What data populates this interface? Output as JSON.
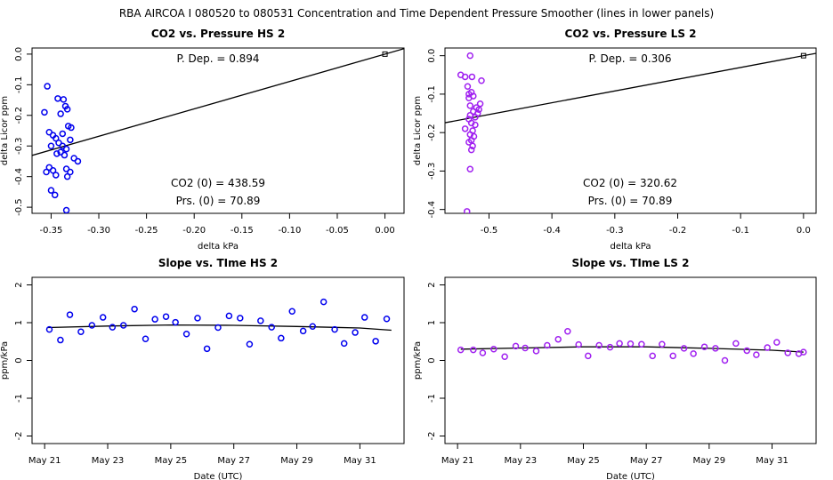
{
  "figure": {
    "title": "RBA   AIRCOA I   080520 to 080531   Concentration and Time Dependent Pressure Smoother (lines in lower panels)"
  },
  "colors": {
    "hs": "#0000ee",
    "ls": "#a020f0",
    "line": "#000000"
  },
  "chart_data": [
    {
      "id": "hs_pressure",
      "type": "scatter",
      "title": "CO2 vs. Pressure HS 2",
      "xlabel": "delta kPa",
      "ylabel": "delta Licor ppm",
      "xlim": [
        -0.37,
        0.02
      ],
      "ylim": [
        -0.52,
        0.02
      ],
      "xticks": [
        -0.35,
        -0.3,
        -0.25,
        -0.2,
        -0.15,
        -0.1,
        -0.05,
        0.0
      ],
      "xtick_labels": [
        "-0.35",
        "-0.30",
        "-0.25",
        "-0.20",
        "-0.15",
        "-0.10",
        "-0.05",
        "0.00"
      ],
      "yticks": [
        0.0,
        -0.1,
        -0.2,
        -0.3,
        -0.4,
        -0.5
      ],
      "ytick_labels": [
        "0.0",
        "-0.1",
        "-0.2",
        "-0.3",
        "-0.4",
        "-0.5"
      ],
      "fit_line": {
        "slope": 0.894,
        "intercept": 0.0
      },
      "origin_point": [
        0.0,
        0.0
      ],
      "annotations": [
        "P. Dep. =  0.894",
        "CO2 (0) =  438.59",
        "Prs. (0) = 70.89"
      ],
      "points": [
        [
          -0.354,
          -0.105
        ],
        [
          -0.357,
          -0.19
        ],
        [
          -0.343,
          -0.145
        ],
        [
          -0.337,
          -0.148
        ],
        [
          -0.335,
          -0.17
        ],
        [
          -0.333,
          -0.18
        ],
        [
          -0.34,
          -0.195
        ],
        [
          -0.352,
          -0.255
        ],
        [
          -0.348,
          -0.265
        ],
        [
          -0.345,
          -0.275
        ],
        [
          -0.338,
          -0.26
        ],
        [
          -0.332,
          -0.235
        ],
        [
          -0.329,
          -0.24
        ],
        [
          -0.33,
          -0.28
        ],
        [
          -0.35,
          -0.3
        ],
        [
          -0.342,
          -0.29
        ],
        [
          -0.338,
          -0.3
        ],
        [
          -0.334,
          -0.31
        ],
        [
          -0.344,
          -0.325
        ],
        [
          -0.34,
          -0.32
        ],
        [
          -0.336,
          -0.33
        ],
        [
          -0.326,
          -0.34
        ],
        [
          -0.322,
          -0.35
        ],
        [
          -0.352,
          -0.37
        ],
        [
          -0.355,
          -0.385
        ],
        [
          -0.348,
          -0.38
        ],
        [
          -0.345,
          -0.395
        ],
        [
          -0.334,
          -0.375
        ],
        [
          -0.33,
          -0.385
        ],
        [
          -0.333,
          -0.4
        ],
        [
          -0.35,
          -0.445
        ],
        [
          -0.346,
          -0.46
        ],
        [
          -0.334,
          -0.51
        ]
      ]
    },
    {
      "id": "ls_pressure",
      "type": "scatter",
      "title": "CO2 vs. Pressure LS 2",
      "xlabel": "delta kPa",
      "ylabel": "delta Licor ppm",
      "xlim": [
        -0.57,
        0.02
      ],
      "ylim": [
        -0.41,
        0.02
      ],
      "xticks": [
        -0.5,
        -0.4,
        -0.3,
        -0.2,
        -0.1,
        0.0
      ],
      "xtick_labels": [
        "-0.5",
        "-0.4",
        "-0.3",
        "-0.2",
        "-0.1",
        "0.0"
      ],
      "yticks": [
        0.0,
        -0.1,
        -0.2,
        -0.3,
        -0.4
      ],
      "ytick_labels": [
        "0.0",
        "-0.1",
        "-0.2",
        "-0.3",
        "-0.4"
      ],
      "fit_line": {
        "slope": 0.306,
        "intercept": 0.0
      },
      "origin_point": [
        0.0,
        0.0
      ],
      "annotations": [
        "P. Dep. =  0.306",
        "CO2 (0) =  320.62",
        "Prs. (0) = 70.89"
      ],
      "points": [
        [
          -0.53,
          0.0
        ],
        [
          -0.545,
          -0.05
        ],
        [
          -0.538,
          -0.055
        ],
        [
          -0.527,
          -0.055
        ],
        [
          -0.512,
          -0.065
        ],
        [
          -0.534,
          -0.08
        ],
        [
          -0.532,
          -0.1
        ],
        [
          -0.528,
          -0.095
        ],
        [
          -0.525,
          -0.105
        ],
        [
          -0.532,
          -0.11
        ],
        [
          -0.514,
          -0.125
        ],
        [
          -0.52,
          -0.135
        ],
        [
          -0.525,
          -0.145
        ],
        [
          -0.53,
          -0.155
        ],
        [
          -0.518,
          -0.15
        ],
        [
          -0.532,
          -0.165
        ],
        [
          -0.528,
          -0.175
        ],
        [
          -0.522,
          -0.18
        ],
        [
          -0.526,
          -0.195
        ],
        [
          -0.53,
          -0.205
        ],
        [
          -0.524,
          -0.21
        ],
        [
          -0.528,
          -0.22
        ],
        [
          -0.532,
          -0.225
        ],
        [
          -0.526,
          -0.235
        ],
        [
          -0.528,
          -0.245
        ],
        [
          -0.53,
          -0.295
        ],
        [
          -0.535,
          -0.405
        ],
        [
          -0.538,
          -0.19
        ],
        [
          -0.522,
          -0.16
        ],
        [
          -0.516,
          -0.14
        ],
        [
          -0.53,
          -0.13
        ]
      ]
    },
    {
      "id": "hs_time",
      "type": "scatter",
      "title": "Slope vs. TIme HS 2",
      "xlabel": "Date (UTC)",
      "ylabel": "ppm/kPa",
      "xlim": [
        20.6,
        32.4
      ],
      "ylim": [
        -2.2,
        2.2
      ],
      "xticks": [
        21,
        23,
        25,
        27,
        29,
        31
      ],
      "xtick_labels": [
        "May 21",
        "May 23",
        "May 25",
        "May 27",
        "May 29",
        "May 31"
      ],
      "yticks": [
        -2,
        -1,
        0,
        1,
        2
      ],
      "ytick_labels": [
        "-2",
        "-1",
        "0",
        "1",
        "2"
      ],
      "smoother": [
        [
          21.1,
          0.87
        ],
        [
          23,
          0.91
        ],
        [
          25,
          0.94
        ],
        [
          27,
          0.93
        ],
        [
          29,
          0.9
        ],
        [
          31,
          0.86
        ],
        [
          32.0,
          0.8
        ]
      ],
      "points": [
        [
          21.15,
          0.82
        ],
        [
          21.5,
          0.54
        ],
        [
          21.8,
          1.21
        ],
        [
          22.15,
          0.76
        ],
        [
          22.5,
          0.93
        ],
        [
          22.85,
          1.14
        ],
        [
          23.15,
          0.88
        ],
        [
          23.5,
          0.93
        ],
        [
          23.85,
          1.36
        ],
        [
          24.2,
          0.57
        ],
        [
          24.5,
          1.09
        ],
        [
          24.85,
          1.16
        ],
        [
          25.15,
          1.01
        ],
        [
          25.5,
          0.7
        ],
        [
          25.85,
          1.12
        ],
        [
          26.15,
          0.31
        ],
        [
          26.5,
          0.87
        ],
        [
          26.85,
          1.18
        ],
        [
          27.2,
          1.12
        ],
        [
          27.5,
          0.43
        ],
        [
          27.85,
          1.05
        ],
        [
          28.2,
          0.88
        ],
        [
          28.5,
          0.59
        ],
        [
          28.85,
          1.3
        ],
        [
          29.2,
          0.78
        ],
        [
          29.5,
          0.9
        ],
        [
          29.85,
          1.55
        ],
        [
          30.2,
          0.82
        ],
        [
          30.5,
          0.45
        ],
        [
          30.85,
          0.74
        ],
        [
          31.15,
          1.14
        ],
        [
          31.5,
          0.51
        ],
        [
          31.85,
          1.1
        ]
      ]
    },
    {
      "id": "ls_time",
      "type": "scatter",
      "title": "Slope vs. TIme LS 2",
      "xlabel": "Date (UTC)",
      "ylabel": "ppm/kPa",
      "xlim": [
        20.6,
        32.4
      ],
      "ylim": [
        -2.2,
        2.2
      ],
      "xticks": [
        21,
        23,
        25,
        27,
        29,
        31
      ],
      "xtick_labels": [
        "May 21",
        "May 23",
        "May 25",
        "May 27",
        "May 29",
        "May 31"
      ],
      "yticks": [
        -2,
        -1,
        0,
        1,
        2
      ],
      "ytick_labels": [
        "-2",
        "-1",
        "0",
        "1",
        "2"
      ],
      "smoother": [
        [
          21.1,
          0.3
        ],
        [
          23,
          0.33
        ],
        [
          25,
          0.36
        ],
        [
          27,
          0.36
        ],
        [
          29,
          0.32
        ],
        [
          31,
          0.27
        ],
        [
          32.0,
          0.22
        ]
      ],
      "points": [
        [
          21.1,
          0.28
        ],
        [
          21.5,
          0.28
        ],
        [
          21.8,
          0.2
        ],
        [
          22.15,
          0.3
        ],
        [
          22.5,
          0.1
        ],
        [
          22.85,
          0.38
        ],
        [
          23.15,
          0.33
        ],
        [
          23.5,
          0.25
        ],
        [
          23.85,
          0.4
        ],
        [
          24.2,
          0.56
        ],
        [
          24.5,
          0.77
        ],
        [
          24.85,
          0.42
        ],
        [
          25.15,
          0.12
        ],
        [
          25.5,
          0.4
        ],
        [
          25.85,
          0.35
        ],
        [
          26.15,
          0.45
        ],
        [
          26.5,
          0.44
        ],
        [
          26.85,
          0.43
        ],
        [
          27.2,
          0.12
        ],
        [
          27.5,
          0.43
        ],
        [
          27.85,
          0.12
        ],
        [
          28.2,
          0.32
        ],
        [
          28.5,
          0.18
        ],
        [
          28.85,
          0.36
        ],
        [
          29.2,
          0.32
        ],
        [
          29.5,
          0.0
        ],
        [
          29.85,
          0.45
        ],
        [
          30.2,
          0.26
        ],
        [
          30.5,
          0.15
        ],
        [
          30.85,
          0.34
        ],
        [
          31.15,
          0.48
        ],
        [
          31.5,
          0.2
        ],
        [
          31.85,
          0.18
        ],
        [
          32.0,
          0.22
        ]
      ]
    }
  ]
}
